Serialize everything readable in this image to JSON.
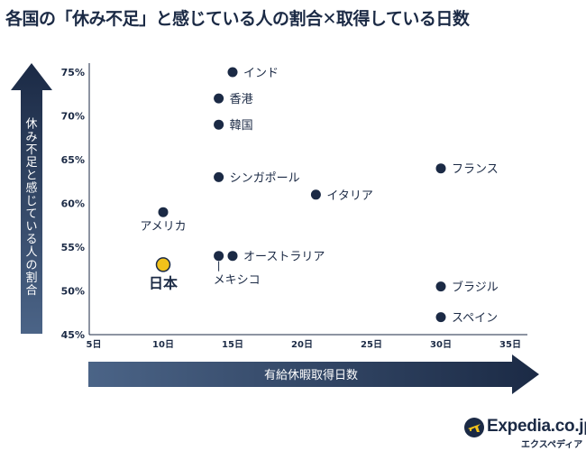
{
  "title": "各国の「休み不足」と感じている人の割合✕取得している日数",
  "chart_data": {
    "type": "scatter",
    "xlabel": "有給休暇取得日数",
    "ylabel": "休み不足と感じている人の割合",
    "xlim": [
      5,
      35
    ],
    "ylim": [
      45,
      75
    ],
    "x_ticks": [
      "5日",
      "10日",
      "15日",
      "20日",
      "25日",
      "30日",
      "35日"
    ],
    "y_ticks": [
      "45%",
      "50%",
      "55%",
      "60%",
      "65%",
      "70%",
      "75%"
    ],
    "highlight_color": "#f2c21b",
    "point_color": "#1b2a45",
    "points": [
      {
        "label": "インド",
        "x": 15,
        "y": 75
      },
      {
        "label": "香港",
        "x": 14,
        "y": 72
      },
      {
        "label": "韓国",
        "x": 14,
        "y": 69
      },
      {
        "label": "シンガポール",
        "x": 14,
        "y": 63
      },
      {
        "label": "イタリア",
        "x": 21,
        "y": 61
      },
      {
        "label": "フランス",
        "x": 30,
        "y": 64
      },
      {
        "label": "アメリカ",
        "x": 10,
        "y": 59
      },
      {
        "label": "オーストラリア",
        "x": 15,
        "y": 54
      },
      {
        "label": "メキシコ",
        "x": 14,
        "y": 54
      },
      {
        "label": "日本",
        "x": 10,
        "y": 53,
        "highlight": true
      },
      {
        "label": "ブラジル",
        "x": 30,
        "y": 50.5
      },
      {
        "label": "スペイン",
        "x": 30,
        "y": 47
      }
    ]
  },
  "logo": {
    "name": "Expedia.co.jp",
    "sub": "エクスペディア"
  }
}
